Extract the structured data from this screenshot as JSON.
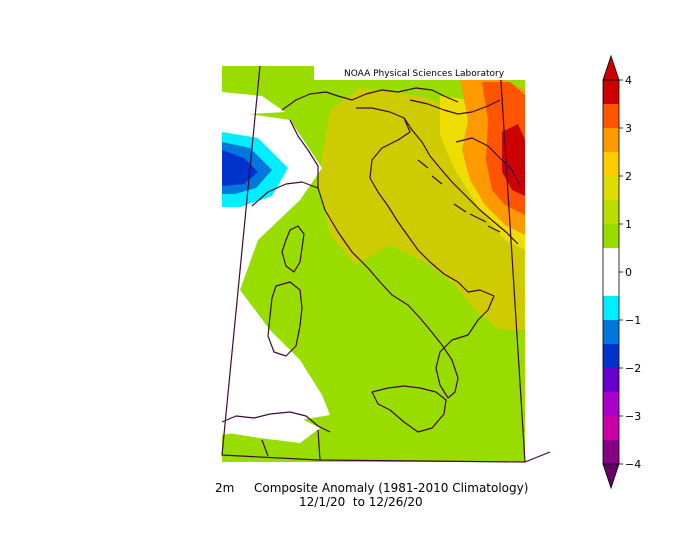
{
  "credit": "NOAA Physical Sciences Laboratory",
  "caption": {
    "variable": "2m",
    "title": "Composite Anomaly (1981-2010 Climatology)",
    "date_range": "12/1/20  to 12/26/20"
  },
  "colorbar": {
    "ticks": [
      "4",
      "3",
      "2",
      "1",
      "0",
      "−1",
      "−2",
      "−3",
      "−4"
    ],
    "bands_top_to_bottom": [
      "#cc0000",
      "#ff5500",
      "#ff9900",
      "#ffcc00",
      "#dddd00",
      "#bbdd00",
      "#99dd00",
      "#ffffff",
      "#ffffff",
      "#00eeff",
      "#0077dd",
      "#0033cc",
      "#6600cc",
      "#aa00cc",
      "#cc00aa",
      "#880088"
    ]
  },
  "colors": {
    "light_green": "#99dd00",
    "yellow_green": "#cccc00",
    "yellow": "#eedd00",
    "orange": "#ff9900",
    "red": "#cc0000",
    "cyan": "#00eeff",
    "blue": "#0055cc",
    "border": "#3d0a3d"
  }
}
